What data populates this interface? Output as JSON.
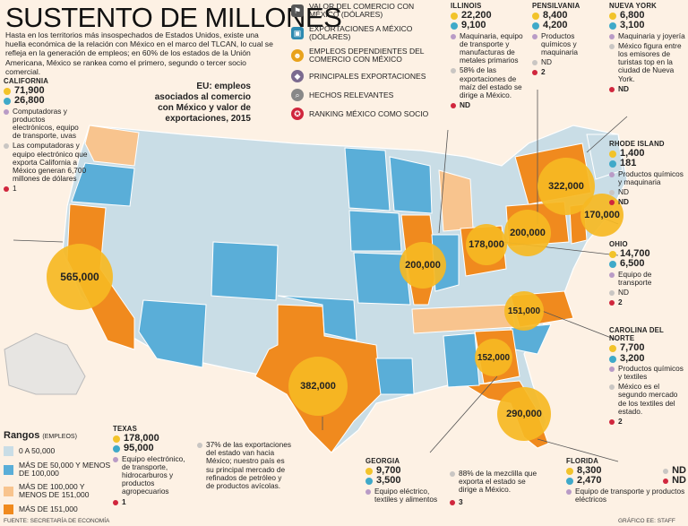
{
  "title": "SUSTENTO DE MILLONES",
  "intro": "Hasta en los territorios más insospechados de Estados Unidos, existe una huella económica de la relación con México en el marco del TLCAN, lo cual se refleja en la generación de empleos; en 60% de los estados de la Unión Americana, México se rankea como el primero, segundo o tercer socio comercial.",
  "legend_top": [
    {
      "icon": "flag-icon",
      "label": "VALOR DEL COMERCIO CON MÉXICO (DÓLARES)"
    },
    {
      "icon": "export-icon",
      "label": "EXPORTACIONES A MÉXICO (DÓLARES)"
    },
    {
      "icon": "workers-icon",
      "label": "EMPLEOS DEPENDIENTES DEL COMERCIO CON MÉXICO"
    },
    {
      "icon": "product-icon",
      "label": "PRINCIPALES EXPORTACIONES"
    },
    {
      "icon": "magnifier-icon",
      "label": "HECHOS RELEVANTES"
    },
    {
      "icon": "medal-icon",
      "label": "RANKING MÉXICO COMO SOCIO"
    }
  ],
  "map_title": "EU: empleos asociados al comercio con México y valor de exportaciones, 2015",
  "bubbles": [
    {
      "id": "ca",
      "value": "565,000"
    },
    {
      "id": "tx",
      "value": "382,000"
    },
    {
      "id": "ny",
      "value": "322,000"
    },
    {
      "id": "fl",
      "value": "290,000"
    },
    {
      "id": "il",
      "value": "200,000"
    },
    {
      "id": "pa",
      "value": "200,000"
    },
    {
      "id": "oh",
      "value": "178,000"
    },
    {
      "id": "nj",
      "value": "170,000"
    },
    {
      "id": "ga",
      "value": "152,000"
    },
    {
      "id": "nc",
      "value": "151,000"
    }
  ],
  "states": {
    "california": {
      "name": "CALIFORNIA",
      "trade": "71,900",
      "exports": "26,800",
      "products": "Computadoras y productos electrónicos, equipo de transporte, uvas",
      "fact": "Las computadoras y equipo electrónico que exporta California a México generan 6,700 millones de dólares",
      "rank": "1"
    },
    "illinois": {
      "name": "ILLINOIS",
      "trade": "22,200",
      "exports": "9,100",
      "products": "Maquinaria, equipo de transporte y manufacturas de metales primarios",
      "fact": "58% de las exportaciones de maíz del estado se dirige a México.",
      "rank": "ND"
    },
    "pensilvania": {
      "name": "PENSILVANIA",
      "trade": "8,400",
      "exports": "4,200",
      "products": "Productos químicos y maquinaria",
      "fact": "ND",
      "rank": "2"
    },
    "nuevayork": {
      "name": "NUEVA YORK",
      "trade": "6,800",
      "exports": "3,100",
      "products": "Maquinaria y joyería",
      "fact": "México figura entre los emisores de turistas top en la ciudad de Nueva York.",
      "rank": "ND"
    },
    "rhodeisland": {
      "name": "RHODE ISLAND",
      "trade": "1,400",
      "exports": "181",
      "products": "Productos químicos y maquinaria",
      "fact": "ND",
      "rank": "ND"
    },
    "ohio": {
      "name": "OHIO",
      "trade": "14,700",
      "exports": "6,500",
      "products": "Equipo de transporte",
      "fact": "ND",
      "rank": "2"
    },
    "carolina": {
      "name": "CAROLINA DEL NORTE",
      "trade": "7,700",
      "exports": "3,200",
      "products": "Productos químicos y textiles",
      "fact": "México es el segundo mercado de los textiles del estado.",
      "rank": "2"
    },
    "texas": {
      "name": "TEXAS",
      "trade": "178,000",
      "exports": "95,000",
      "products": "Equipo electrónico, de transporte, hidrocarburos y productos agropecuarios",
      "fact": "37% de las exportaciones del estado van hacia México; nuestro país es su principal mercado de refinados de petróleo y de productos avícolas.",
      "rank": "1"
    },
    "georgia": {
      "name": "GEORGIA",
      "trade": "9,700",
      "exports": "3,500",
      "products": "Equipo eléctrico, textiles y alimentos",
      "fact": "88% de la mezclilla que exporta el estado se dirige a México.",
      "rank": "3"
    },
    "florida": {
      "name": "FLORIDA",
      "trade": "8,300",
      "exports": "2,470",
      "products": "Equipo de transporte y productos eléctricos",
      "fact": "ND",
      "rank": "ND"
    }
  },
  "rangos": {
    "title": "Rangos",
    "subtitle": "(EMPLEOS)",
    "items": [
      {
        "label": "0 A 50,000",
        "color": "#c9dde6"
      },
      {
        "label": "MÁS DE 50,000 Y MENOS DE 100,000",
        "color": "#5aaed8"
      },
      {
        "label": "MÁS DE 100,000 Y MENOS DE 151,000",
        "color": "#f8c48e"
      },
      {
        "label": "MÁS DE 151,000",
        "color": "#f08a1e"
      }
    ]
  },
  "source": "FUENTE: SECRETARÍA DE ECONOMÍA",
  "credit": "GRÁFICO EE: STAFF"
}
